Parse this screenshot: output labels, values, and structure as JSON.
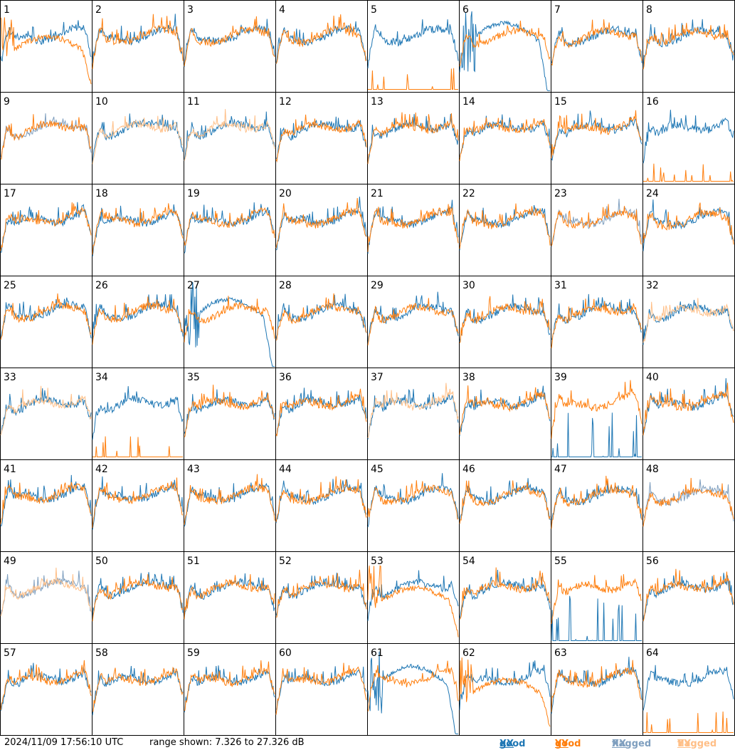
{
  "chart_data": {
    "type": "line",
    "grid": {
      "rows": 8,
      "cols": 8
    },
    "panel_labels": [
      "1",
      "2",
      "3",
      "4",
      "5",
      "6",
      "7",
      "8",
      "9",
      "10",
      "11",
      "12",
      "13",
      "14",
      "15",
      "16",
      "17",
      "18",
      "19",
      "20",
      "21",
      "22",
      "23",
      "24",
      "25",
      "26",
      "27",
      "28",
      "29",
      "30",
      "31",
      "32",
      "33",
      "34",
      "35",
      "36",
      "37",
      "38",
      "39",
      "40",
      "41",
      "42",
      "43",
      "44",
      "45",
      "46",
      "47",
      "48",
      "49",
      "50",
      "51",
      "52",
      "53",
      "54",
      "55",
      "56",
      "57",
      "58",
      "59",
      "60",
      "61",
      "62",
      "63",
      "64"
    ],
    "ylim": [
      7.326,
      27.326
    ],
    "series_colors": {
      "good_xx": "#1f77b4",
      "good_yy": "#ff7f0e",
      "flagged_xx": "#7f9fbf",
      "flagged_yy": "#ffbf87"
    },
    "panel_status": {
      "flag_xx": [
        9,
        23,
        48,
        49
      ],
      "flag_yy": [
        10,
        11,
        32,
        33,
        37,
        49
      ],
      "bad_xx": [
        6,
        27,
        39,
        55,
        61
      ],
      "bad_yy": [
        1,
        5,
        16,
        34,
        53,
        62,
        64
      ]
    },
    "footer": {
      "timestamp": "2024/11/09 17:56:10 UTC",
      "range": "range shown: 7.326 to 27.326 dB"
    },
    "legend": [
      {
        "prefix": "good ",
        "pol": "XX",
        "color": "#1f77b4"
      },
      {
        "prefix": "good ",
        "pol": "YY",
        "color": "#ff7f0e"
      },
      {
        "prefix": "flagged ",
        "pol": "XX",
        "color": "#7f9fbf"
      },
      {
        "prefix": "flagged ",
        "pol": "YY",
        "color": "#ffbf87"
      }
    ]
  }
}
